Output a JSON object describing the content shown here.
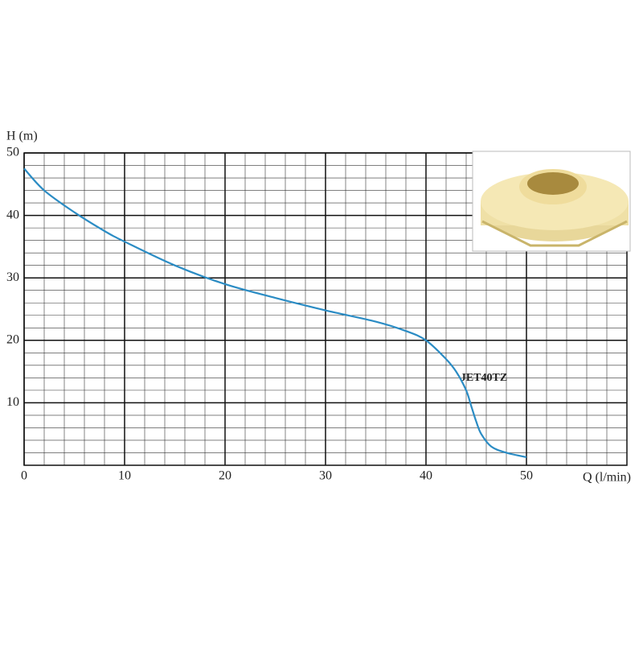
{
  "chart_data": {
    "type": "line",
    "y_label": "H (m)",
    "x_label": "Q (l/min)",
    "annotation": "JET40TZ",
    "xlim": [
      0,
      60
    ],
    "ylim": [
      0,
      50
    ],
    "xticks": [
      0,
      10,
      20,
      30,
      40,
      50
    ],
    "yticks": [
      10,
      20,
      30,
      40,
      50
    ],
    "grid": true,
    "minor_divisions": 5,
    "series": [
      {
        "name": "JET40TZ",
        "color": "#2b8cc4",
        "x": [
          0,
          2,
          5,
          8,
          10,
          15,
          20,
          25,
          30,
          35,
          38,
          40,
          42,
          43,
          44,
          44.5,
          45,
          45.5,
          46.5,
          48,
          50
        ],
        "values": [
          47.5,
          44,
          40.5,
          37.5,
          35.8,
          32,
          29,
          26.8,
          24.8,
          23,
          21.5,
          20,
          17,
          15,
          12,
          9.5,
          7,
          5,
          3,
          2,
          1.3
        ]
      }
    ]
  }
}
